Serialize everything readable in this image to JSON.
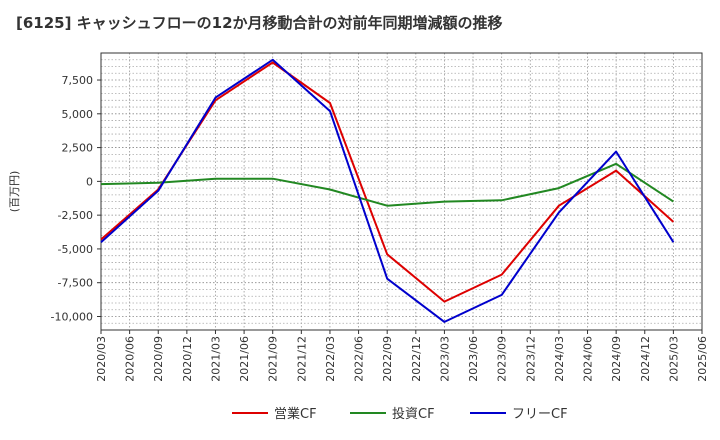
{
  "chart_data": {
    "type": "line",
    "title": "[6125]  キャッシュフローの12か月移動合計の対前年同期増減額の推移",
    "ylabel": "(百万円)",
    "xlabel": "",
    "x": [
      "2020/03",
      "2020/06",
      "2020/09",
      "2020/12",
      "2021/03",
      "2021/06",
      "2021/09",
      "2021/12",
      "2022/03",
      "2022/06",
      "2022/09",
      "2022/12",
      "2023/03",
      "2023/06",
      "2023/09",
      "2023/12",
      "2024/03",
      "2024/06",
      "2024/09",
      "2024/12",
      "2025/03",
      "2025/06"
    ],
    "ylim": [
      -11000,
      9500
    ],
    "yticks": [
      7500,
      5000,
      2500,
      0,
      -2500,
      -5000,
      -7500,
      -10000
    ],
    "ytick_labels": [
      "7,500",
      "5,000",
      "2,500",
      "0",
      "-2,500",
      "-5,000",
      "-7,500",
      "-10,000"
    ],
    "grid": true,
    "legend_position": "bottom",
    "series": [
      {
        "name": "営業CF",
        "color": "#dd0000",
        "values": [
          -4300,
          null,
          -600,
          null,
          6000,
          null,
          8800,
          null,
          5800,
          null,
          -5400,
          null,
          -8900,
          null,
          -6900,
          null,
          -1800,
          null,
          800,
          null,
          -3000,
          null
        ]
      },
      {
        "name": "投資CF",
        "color": "#228822",
        "values": [
          -200,
          null,
          -100,
          null,
          200,
          null,
          200,
          null,
          -600,
          null,
          -1800,
          null,
          -1500,
          null,
          -1400,
          null,
          -500,
          null,
          1300,
          null,
          -1500,
          null
        ]
      },
      {
        "name": "フリーCF",
        "color": "#0000cc",
        "values": [
          -4500,
          null,
          -700,
          null,
          6200,
          null,
          9000,
          null,
          5200,
          null,
          -7200,
          null,
          -10400,
          null,
          -8400,
          null,
          -2300,
          null,
          2200,
          null,
          -4500,
          null
        ]
      }
    ]
  }
}
